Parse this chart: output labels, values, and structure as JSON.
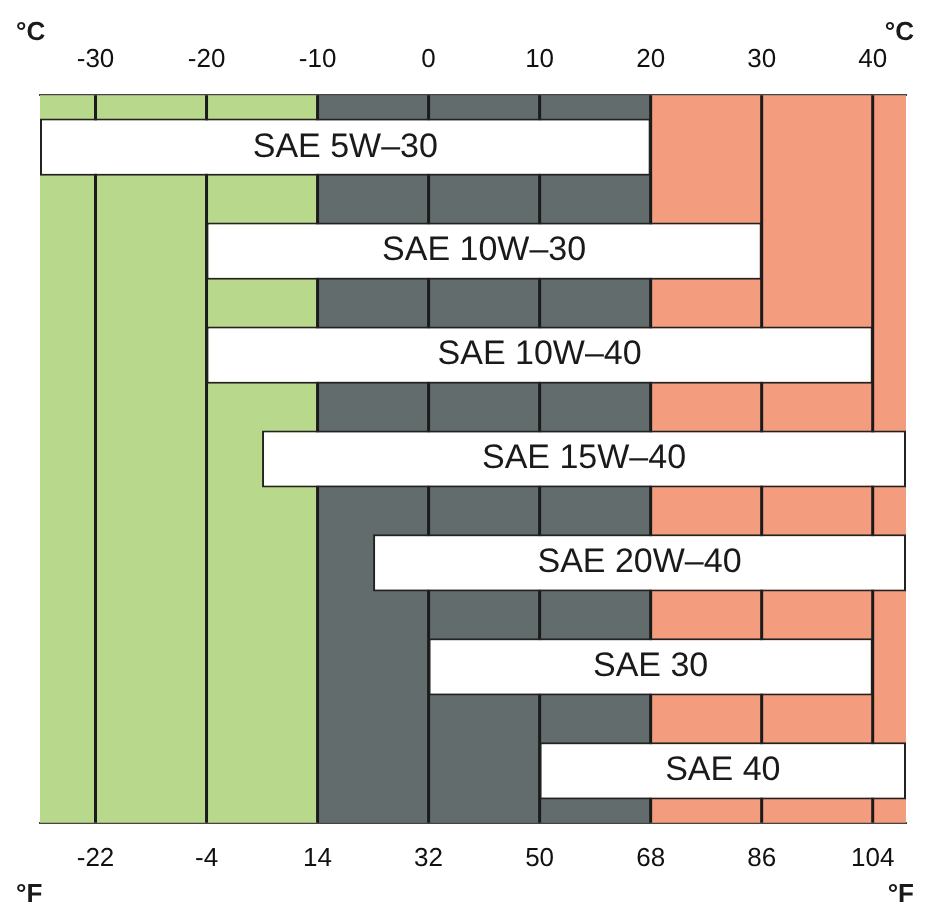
{
  "chart_data": {
    "type": "bar",
    "orientation": "horizontal",
    "categories": [
      "SAE 5W–30",
      "SAE 10W–30",
      "SAE 10W–40",
      "SAE 15W–40",
      "SAE 20W–40",
      "SAE 30",
      "SAE 40"
    ],
    "base": [
      -35,
      -20,
      -20,
      -15,
      -5,
      0,
      10
    ],
    "values": [
      55,
      50,
      60,
      58,
      48,
      40,
      33
    ],
    "color": "#ffffff",
    "xlabel": "°C",
    "x2label": "°F",
    "xlim": [
      -35,
      43
    ],
    "xticks": [
      -30,
      -20,
      -10,
      0,
      10,
      20,
      30,
      40
    ],
    "x2lim": [
      -31,
      109.4
    ],
    "x2ticks": [
      -22,
      -4,
      14,
      32,
      50,
      68,
      86,
      104
    ],
    "bands": [
      {
        "axis": "x",
        "from": -35,
        "to": -10,
        "color": "#b8d98c"
      },
      {
        "axis": "x",
        "from": -10,
        "to": 20,
        "color": "#626c6c"
      },
      {
        "axis": "x",
        "from": 20,
        "to": 43,
        "color": "#f39c7e"
      }
    ],
    "grid": "x",
    "tick_labels": "x",
    "legend": false
  }
}
